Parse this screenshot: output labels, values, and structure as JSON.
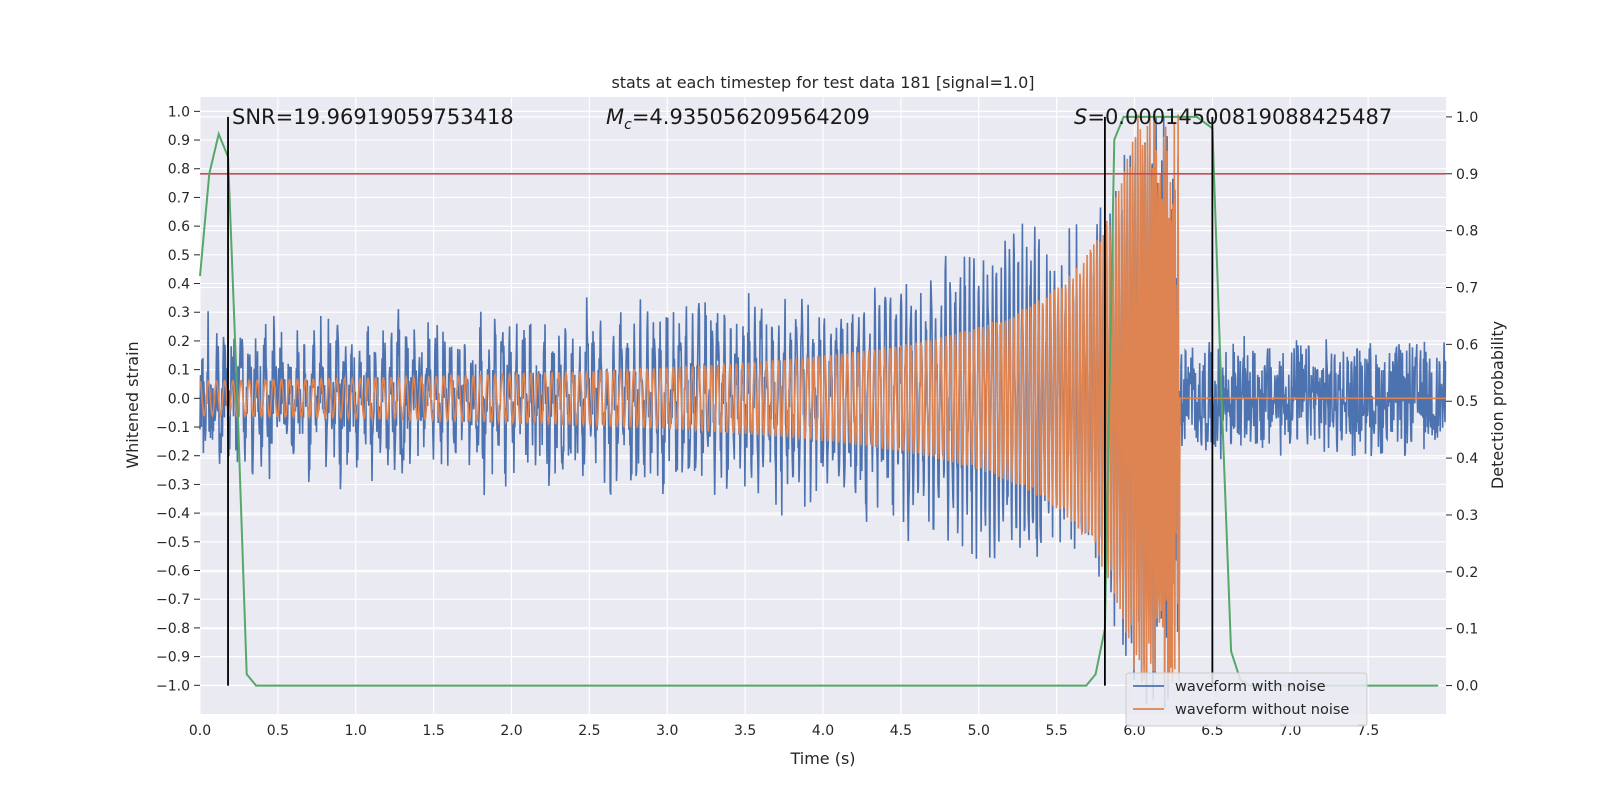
{
  "chart_data": {
    "type": "line",
    "title": "stats at each timestep for test data 181 [signal=1.0]",
    "xlabel": "Time (s)",
    "ylabel_left": "Whitened strain",
    "ylabel_right": "Detection probability",
    "xlim": [
      0.0,
      8.0
    ],
    "ylim_left": [
      -1.1,
      1.05
    ],
    "ylim_right": [
      -0.05,
      1.035
    ],
    "xticks": [
      0.0,
      0.5,
      1.0,
      1.5,
      2.0,
      2.5,
      3.0,
      3.5,
      4.0,
      4.5,
      5.0,
      5.5,
      6.0,
      6.5,
      7.0,
      7.5
    ],
    "xtick_labels": [
      "0.0",
      "0.5",
      "1.0",
      "1.5",
      "2.0",
      "2.5",
      "3.0",
      "3.5",
      "4.0",
      "4.5",
      "5.0",
      "5.5",
      "6.0",
      "6.5",
      "7.0",
      "7.5"
    ],
    "yticks_left": [
      1.0,
      0.9,
      0.8,
      0.7,
      0.6,
      0.5,
      0.4,
      0.3,
      0.2,
      0.1,
      0.0,
      -0.1,
      -0.2,
      -0.3,
      -0.4,
      -0.5,
      -0.6,
      -0.7,
      -0.8,
      -0.9,
      -1.0
    ],
    "ytick_labels_left": [
      "1.0",
      "0.9",
      "0.8",
      "0.7",
      "0.6",
      "0.5",
      "0.4",
      "0.3",
      "0.2",
      "0.1",
      "0.0",
      "−0.1",
      "−0.2",
      "−0.3",
      "−0.4",
      "−0.5",
      "−0.6",
      "−0.7",
      "−0.8",
      "−0.9",
      "−1.0"
    ],
    "yticks_right": [
      1.0,
      0.9,
      0.8,
      0.7,
      0.6,
      0.5,
      0.4,
      0.3,
      0.2,
      0.1,
      0.0
    ],
    "ytick_labels_right": [
      "1.0",
      "0.9",
      "0.8",
      "0.7",
      "0.6",
      "0.5",
      "0.4",
      "0.3",
      "0.2",
      "0.1",
      "0.0"
    ],
    "annotations": {
      "snr": "SNR=19.96919059753418",
      "mc_symbol": "M",
      "mc_sub": "c",
      "mc_value": "=4.935056209564209",
      "s_symbol": "S",
      "s_value": "=0.00014500819088425487"
    },
    "threshold_right": 0.9,
    "vertical_lines_x": [
      0.18,
      5.81,
      6.5
    ],
    "series": [
      {
        "name": "waveform with noise",
        "color": "#4c72b0",
        "axis": "left",
        "envelope": {
          "noise_amplitude": 0.22,
          "signal_start_amplitude": 0.03,
          "signal_peak_amplitude": 0.95,
          "merger_time": 6.29
        }
      },
      {
        "name": "waveform without noise",
        "color": "#dd8452",
        "axis": "left",
        "envelope": {
          "start_amplitude": 0.06,
          "peak_amplitude": 0.99,
          "merger_time": 6.29,
          "after_merger_value": 0.0
        }
      },
      {
        "name": "detection probability",
        "color": "#55a868",
        "axis": "right",
        "x": [
          0.0,
          0.06,
          0.12,
          0.18,
          0.24,
          0.3,
          0.36,
          0.42,
          1.0,
          2.0,
          3.0,
          4.0,
          5.0,
          5.5,
          5.69,
          5.75,
          5.81,
          5.87,
          5.93,
          6.0,
          6.2,
          6.4,
          6.5,
          6.56,
          6.62,
          6.68,
          6.74,
          7.0,
          7.5,
          7.95
        ],
        "y": [
          0.72,
          0.9,
          0.97,
          0.93,
          0.5,
          0.02,
          0.0,
          0.0,
          0.0,
          0.0,
          0.0,
          0.0,
          0.0,
          0.0,
          0.0,
          0.02,
          0.1,
          0.96,
          1.0,
          1.0,
          1.0,
          1.0,
          0.98,
          0.5,
          0.06,
          0.01,
          0.0,
          0.0,
          0.0,
          0.0
        ]
      }
    ],
    "threshold_color": "#c44e52",
    "vline_color": "#000000",
    "legend_location": "lower-right"
  }
}
